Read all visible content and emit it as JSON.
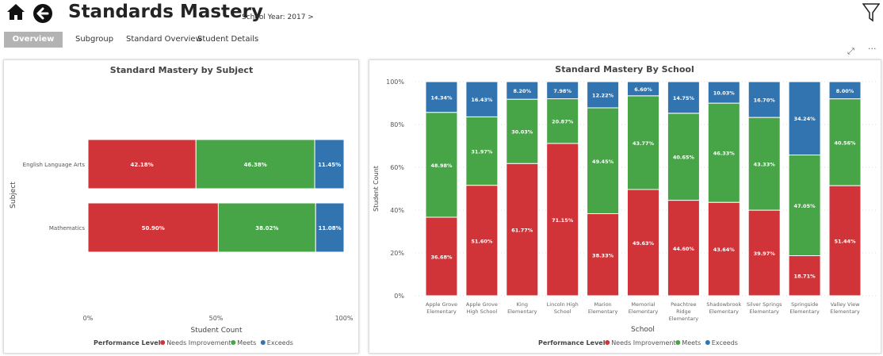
{
  "header": {
    "title": "Standards Mastery",
    "school_year": "School Year: 2017 >"
  },
  "tabs": [
    {
      "label": "Overview",
      "active": true
    },
    {
      "label": "Subgroup"
    },
    {
      "label": "Standard Overview"
    },
    {
      "label": "Student Details"
    }
  ],
  "icons": {
    "home": "home-icon",
    "back": "back-arrow-icon",
    "filter": "filter-icon",
    "expand": "focus-mode-icon",
    "more": "more-options-icon"
  },
  "colors": {
    "Needs Improvement": "#d13438",
    "Meets": "#47a447",
    "Exceeds": "#3174b0"
  },
  "chart_data": [
    {
      "type": "bar",
      "orientation": "horizontal",
      "stacked": "100%",
      "title": "Standard Mastery by Subject",
      "xlabel": "Student Count",
      "ylabel": "Subject",
      "xticks": [
        "0%",
        "50%",
        "100%"
      ],
      "categories": [
        "English Language Arts",
        "Mathematics"
      ],
      "legend_title": "Performance Level",
      "legend_position": "bottom",
      "series": [
        {
          "name": "Needs Improvement",
          "values": [
            42.18,
            50.9
          ],
          "labels": [
            "42.18%",
            "50.90%"
          ]
        },
        {
          "name": "Meets",
          "values": [
            46.38,
            38.02
          ],
          "labels": [
            "46.38%",
            "38.02%"
          ]
        },
        {
          "name": "Exceeds",
          "values": [
            11.45,
            11.08
          ],
          "labels": [
            "11.45%",
            "11.08%"
          ]
        }
      ]
    },
    {
      "type": "bar",
      "orientation": "vertical",
      "stacked": "100%",
      "title": "Standard Mastery By School",
      "xlabel": "School",
      "ylabel": "Student Count",
      "yticks": [
        "0%",
        "20%",
        "40%",
        "60%",
        "80%",
        "100%"
      ],
      "categories": [
        [
          "Apple Grove",
          "Elementary"
        ],
        [
          "Apple Grove",
          "High School"
        ],
        [
          "King",
          "Elementary"
        ],
        [
          "Lincoln High",
          "School"
        ],
        [
          "Marion",
          "Elementary"
        ],
        [
          "Memorial",
          "Elementary"
        ],
        [
          "Peachtree",
          "Ridge",
          "Elementary"
        ],
        [
          "Shadowbrook",
          "Elementary"
        ],
        [
          "Silver Springs",
          "Elementary"
        ],
        [
          "Springside",
          "Elementary"
        ],
        [
          "Valley View",
          "Elementary"
        ]
      ],
      "legend_title": "Performance Level",
      "legend_position": "bottom",
      "series": [
        {
          "name": "Needs Improvement",
          "values": [
            36.68,
            51.6,
            61.77,
            71.15,
            38.33,
            49.63,
            44.6,
            43.64,
            39.97,
            18.71,
            51.44
          ],
          "labels": [
            "36.68%",
            "51.60%",
            "61.77%",
            "71.15%",
            "38.33%",
            "49.63%",
            "44.60%",
            "43.64%",
            "39.97%",
            "18.71%",
            "51.44%"
          ]
        },
        {
          "name": "Meets",
          "values": [
            48.98,
            31.97,
            30.03,
            20.87,
            49.45,
            43.77,
            40.65,
            46.33,
            43.33,
            47.05,
            40.56
          ],
          "labels": [
            "48.98%",
            "31.97%",
            "30.03%",
            "20.87%",
            "49.45%",
            "43.77%",
            "40.65%",
            "46.33%",
            "43.33%",
            "47.05%",
            "40.56%"
          ]
        },
        {
          "name": "Exceeds",
          "values": [
            14.34,
            16.43,
            8.2,
            7.98,
            12.22,
            6.6,
            14.75,
            10.03,
            16.7,
            34.24,
            8.0
          ],
          "labels": [
            "14.34%",
            "16.43%",
            "8.20%",
            "7.98%",
            "12.22%",
            "6.60%",
            "14.75%",
            "10.03%",
            "16.70%",
            "34.24%",
            "8.00%"
          ]
        }
      ]
    }
  ]
}
